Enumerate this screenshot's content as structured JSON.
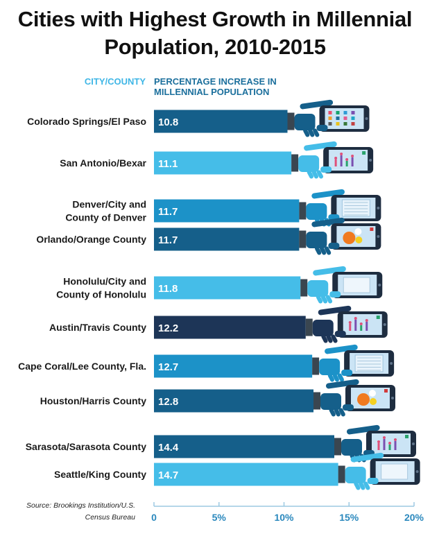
{
  "title_line1": "Cities with Highest Growth in Millennial",
  "title_line2": "Population, 2010-2015",
  "header_city": "CITY/COUNTY",
  "header_pct_line1": "PERCENTAGE INCREASE IN",
  "header_pct_line2": "MILLENNIAL POPULATION",
  "source_line1": "Source: Brookings Institution/U.S.",
  "source_line2": "Census Bureau",
  "colors": {
    "dark_blue": "#155f8a",
    "light_blue": "#45bde8",
    "mid_blue": "#1c92c8",
    "navy": "#1d3557",
    "phone": "#1e2d40",
    "screen": "#cbe4f5",
    "axis_text": "#2a88bd",
    "header_city": "#3fb6e6",
    "header_pct": "#1b6f9c"
  },
  "chart_data": {
    "type": "bar",
    "orientation": "horizontal",
    "title": "Cities with Highest Growth in Millennial Population, 2010-2015",
    "xlabel": "PERCENTAGE INCREASE IN MILLENNIAL POPULATION",
    "ylabel": "CITY/COUNTY",
    "xlim": [
      0,
      20
    ],
    "xticks": [
      "0",
      "5%",
      "10%",
      "15%",
      "20%"
    ],
    "categories": [
      [
        "Colorado Springs/El Paso"
      ],
      [
        "San Antonio/Bexar"
      ],
      [
        "Denver/City and",
        "County of Denver"
      ],
      [
        "Orlando/Orange County"
      ],
      [
        "Honolulu/City and",
        "County of Honolulu"
      ],
      [
        "Austin/Travis County"
      ],
      [
        "Cape Coral/Lee County, Fla."
      ],
      [
        "Houston/Harris County"
      ],
      [
        "Sarasota/Sarasota County"
      ],
      [
        "Seattle/King County"
      ]
    ],
    "values": [
      10.8,
      11.1,
      11.7,
      11.7,
      11.8,
      12.2,
      12.7,
      12.8,
      14.4,
      14.7
    ],
    "value_labels": [
      "10.8",
      "11.1",
      "11.7",
      "11.7",
      "11.8",
      "12.2",
      "12.7",
      "12.8",
      "14.4",
      "14.7"
    ],
    "bar_colors": [
      "#155f8a",
      "#45bde8",
      "#1c92c8",
      "#155f8a",
      "#45bde8",
      "#1d3557",
      "#1c92c8",
      "#155f8a",
      "#155f8a",
      "#45bde8"
    ],
    "screen_icons": [
      "grid",
      "chart",
      "doc",
      "circles",
      "blank",
      "chart",
      "doc",
      "circles",
      "chart",
      "blank"
    ],
    "grid": false,
    "legend": "none"
  }
}
